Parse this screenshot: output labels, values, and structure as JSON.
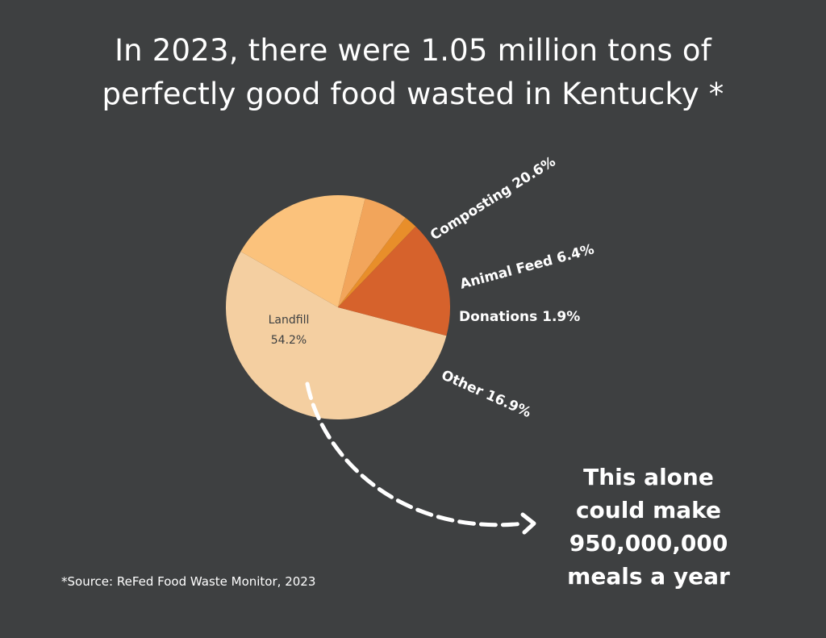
{
  "title": {
    "line1": "In 2023, there were 1.05 million tons of",
    "line2": "perfectly good food wasted in Kentucky *"
  },
  "callout": {
    "line1": "This alone",
    "line2": "could make",
    "line3": "950,000,000",
    "line4": "meals a year"
  },
  "source": "*Source: ReFed Food Waste Monitor, 2023",
  "colors": {
    "background": "#3e4041",
    "landfill": "#f4cfa1",
    "composting": "#fbc27c",
    "animal_feed": "#f2a55b",
    "donations": "#e88e2a",
    "other": "#d6622c"
  },
  "chart_data": {
    "type": "pie",
    "title": "",
    "slices": [
      {
        "name": "Landfill",
        "value": 54.2,
        "label_line1": "Landfill",
        "label_line2": "54.2%",
        "color": "#f4cfa1"
      },
      {
        "name": "Composting",
        "value": 20.6,
        "label": "Composting 20.6%",
        "color": "#fbc27c"
      },
      {
        "name": "Animal Feed",
        "value": 6.4,
        "label": "Animal Feed 6.4%",
        "color": "#f2a55b"
      },
      {
        "name": "Donations",
        "value": 1.9,
        "label": "Donations 1.9%",
        "color": "#e88e2a"
      },
      {
        "name": "Other",
        "value": 16.9,
        "label": "Other 16.9%",
        "color": "#d6622c"
      }
    ]
  }
}
